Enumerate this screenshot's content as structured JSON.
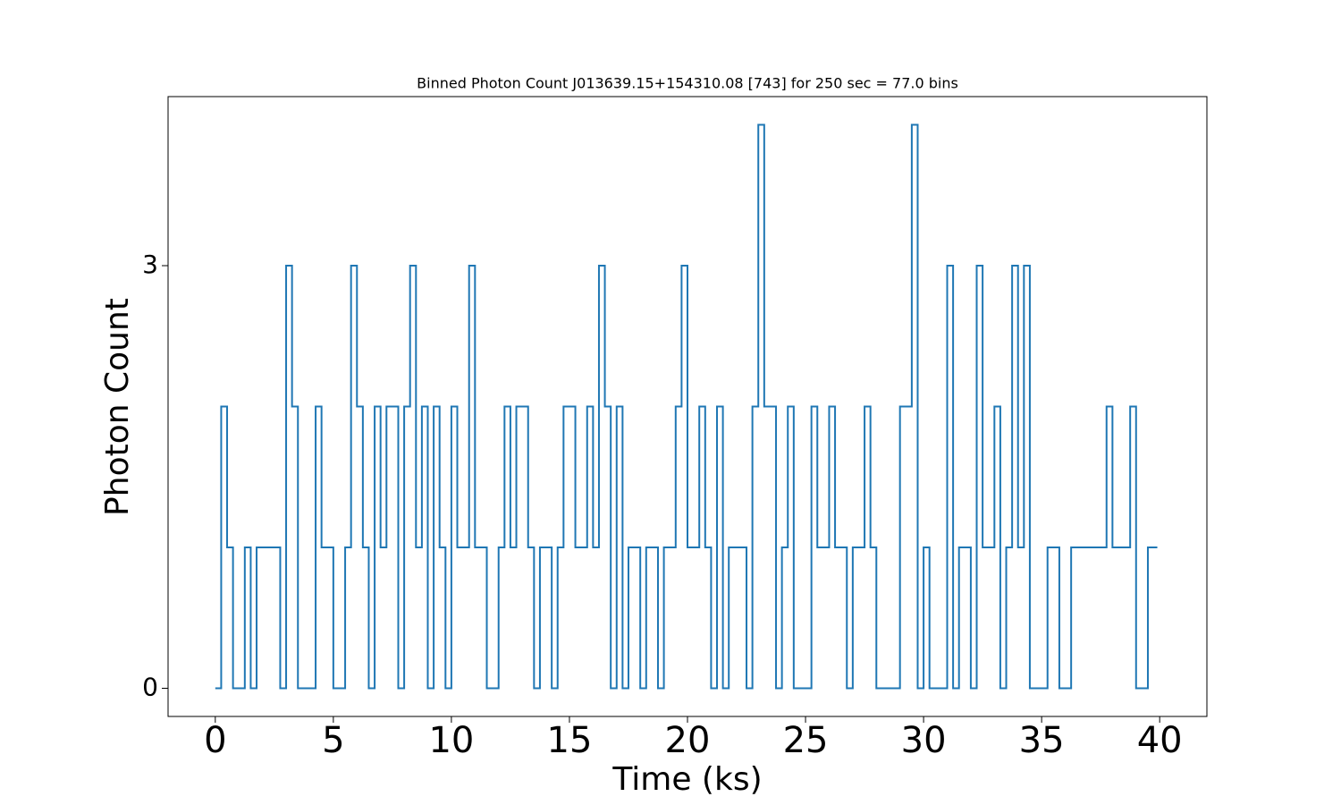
{
  "chart_data": {
    "type": "step",
    "title": "Binned Photon Count J013639.15+154310.08 [743] for 250 sec = 77.0 bins",
    "x_label": "Time (ks)",
    "y_label": "Photon Count",
    "x": [
      0,
      0.25,
      0.5,
      0.75,
      1.25,
      1.5,
      1.75,
      2.75,
      3,
      3.25,
      3.5,
      4.25,
      4.5,
      5,
      5.5,
      5.75,
      6,
      6.25,
      6.5,
      6.75,
      7,
      7.25,
      7.75,
      8,
      8.25,
      8.5,
      8.75,
      9,
      9.25,
      9.5,
      9.75,
      10,
      10.25,
      10.75,
      11,
      11.5,
      12,
      12.25,
      12.5,
      12.75,
      13.25,
      13.5,
      13.75,
      14.25,
      14.5,
      14.75,
      15.25,
      15.75,
      16,
      16.25,
      16.5,
      16.75,
      17,
      17.25,
      17.5,
      18,
      18.25,
      18.75,
      19,
      19.5,
      19.75,
      20,
      20.5,
      20.75,
      21,
      21.25,
      21.5,
      21.75,
      22.5,
      22.75,
      23,
      23.25,
      23.75,
      24,
      24.25,
      24.5,
      25.25,
      25.5,
      26,
      26.25,
      26.75,
      27,
      27.5,
      27.75,
      28,
      29,
      29.5,
      29.75,
      30,
      30.25,
      31,
      31.25,
      31.5,
      32,
      32.25,
      32.5,
      33,
      33.25,
      33.5,
      33.75,
      34,
      34.25,
      34.5,
      35.25,
      35.75,
      36.25,
      37.75,
      38,
      38.75,
      39,
      39.5,
      39.9
    ],
    "series": [
      {
        "name": "Photon Count",
        "color": "#1f77b4",
        "values": [
          0,
          2,
          1,
          0,
          1,
          0,
          1,
          0,
          3,
          2,
          0,
          2,
          1,
          0,
          1,
          3,
          2,
          1,
          0,
          2,
          1,
          2,
          0,
          2,
          3,
          1,
          2,
          0,
          2,
          1,
          0,
          2,
          1,
          3,
          1,
          0,
          1,
          2,
          1,
          2,
          1,
          0,
          1,
          0,
          1,
          2,
          1,
          2,
          1,
          3,
          2,
          0,
          2,
          0,
          1,
          0,
          1,
          0,
          1,
          2,
          3,
          1,
          2,
          1,
          0,
          2,
          0,
          1,
          0,
          2,
          4,
          2,
          0,
          1,
          2,
          0,
          2,
          1,
          2,
          1,
          0,
          1,
          2,
          1,
          0,
          2,
          4,
          0,
          1,
          0,
          3,
          0,
          1,
          0,
          3,
          1,
          2,
          0,
          1,
          3,
          1,
          3,
          0,
          1,
          0,
          1,
          2,
          1,
          2,
          0,
          1,
          1
        ]
      }
    ],
    "xlim": [
      -2,
      42
    ],
    "ylim": [
      -0.2,
      4.2
    ],
    "xticks": [
      0,
      5,
      10,
      15,
      20,
      25,
      30,
      35,
      40
    ],
    "yticks": [
      0,
      3
    ]
  }
}
